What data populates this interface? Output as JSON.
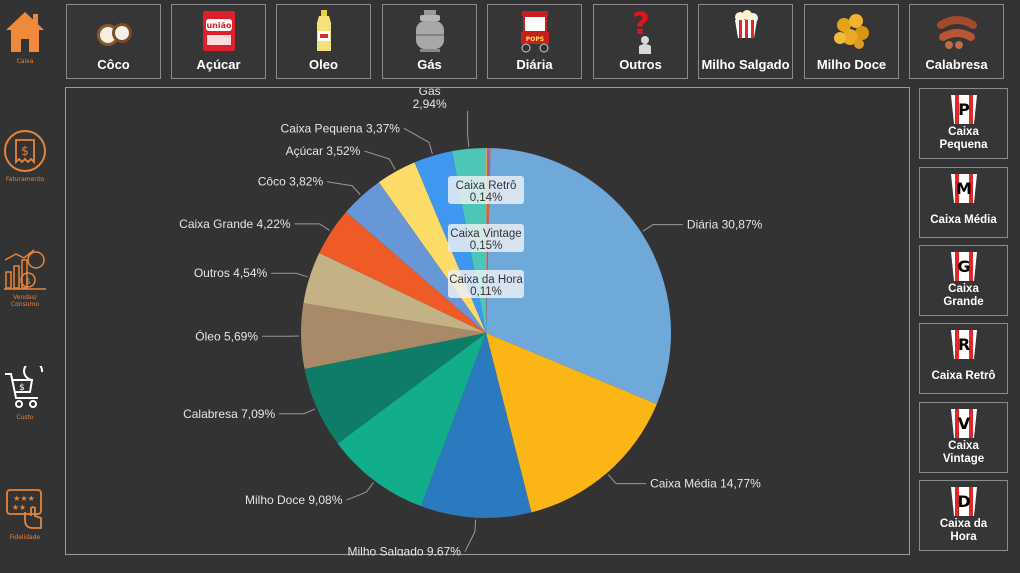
{
  "sidebar": {
    "items": [
      {
        "label": "Caixa",
        "icon": "home-icon"
      },
      {
        "label": "Faturamento",
        "icon": "receipt-dollar-icon"
      },
      {
        "label": "Vendas/ Consumo",
        "icon": "sales-chart-icon"
      },
      {
        "label": "Custo",
        "icon": "shopping-cart-icon"
      },
      {
        "label": "Fidelidade",
        "icon": "loyalty-card-icon"
      }
    ]
  },
  "products": [
    {
      "label": "Côco",
      "icon": "coconut-icon"
    },
    {
      "label": "Açúcar",
      "icon": "sugar-bag-icon"
    },
    {
      "label": "Oleo",
      "icon": "oil-bottle-icon"
    },
    {
      "label": "Gás",
      "icon": "gas-cylinder-icon"
    },
    {
      "label": "Diária",
      "icon": "popcorn-cart-icon"
    },
    {
      "label": "Outros",
      "icon": "question-person-icon"
    },
    {
      "label": "Milho Salgado",
      "icon": "popcorn-bucket-icon"
    },
    {
      "label": "Milho Doce",
      "icon": "caramel-popcorn-icon"
    },
    {
      "label": "Calabresa",
      "icon": "sausage-icon"
    }
  ],
  "boxes": [
    {
      "letter": "P",
      "label": "Caixa Pequena"
    },
    {
      "letter": "M",
      "label": "Caixa Média"
    },
    {
      "letter": "G",
      "label": "Caixa Grande"
    },
    {
      "letter": "R",
      "label": "Caixa Retrô"
    },
    {
      "letter": "V",
      "label": "Caixa Vintage"
    },
    {
      "letter": "D",
      "label": "Caixa da Hora"
    }
  ],
  "chart_data": {
    "type": "pie",
    "unit": "%",
    "slices": [
      {
        "name": "Diária",
        "value": 30.87,
        "label": "Diária 30,87%",
        "color": "#6fa9da"
      },
      {
        "name": "Caixa Média",
        "value": 14.77,
        "label": "Caixa Média 14,77%",
        "color": "#fbb514"
      },
      {
        "name": "Milho Salgado",
        "value": 9.67,
        "label": "Milho Salgado 9,67%",
        "color": "#2b79be"
      },
      {
        "name": "Milho Doce",
        "value": 9.08,
        "label": "Milho Doce 9,08%",
        "color": "#12ae8b"
      },
      {
        "name": "Calabresa",
        "value": 7.09,
        "label": "Calabresa 7,09%",
        "color": "#0f7c68"
      },
      {
        "name": "Óleo",
        "value": 5.69,
        "label": "Óleo 5,69%",
        "color": "#a88a68"
      },
      {
        "name": "Outros",
        "value": 4.54,
        "label": "Outros 4,54%",
        "color": "#c4b184"
      },
      {
        "name": "Caixa Grande",
        "value": 4.22,
        "label": "Caixa Grande 4,22%",
        "color": "#ee5b27"
      },
      {
        "name": "Côco",
        "value": 3.82,
        "label": "Côco 3,82%",
        "color": "#6797d6"
      },
      {
        "name": "Açúcar",
        "value": 3.52,
        "label": "Açúcar 3,52%",
        "color": "#fddb67"
      },
      {
        "name": "Caixa Pequena",
        "value": 3.37,
        "label": "Caixa Pequena 3,37%",
        "color": "#3e97f0"
      },
      {
        "name": "Gás",
        "value": 2.94,
        "label": "Gás 2,94%",
        "color": "#4bc6b7"
      },
      {
        "name": "Caixa Retrô",
        "value": 0.14,
        "label": "Caixa Retrô 0,14%",
        "color": "#d9634a"
      },
      {
        "name": "Caixa Vintage",
        "value": 0.15,
        "label": "Caixa Vintage 0,15%",
        "color": "#8c6dbf"
      },
      {
        "name": "Caixa da Hora",
        "value": 0.11,
        "label": "Caixa da Hora 0,11%",
        "color": "#e0a95a"
      }
    ],
    "boxed_labels": [
      {
        "name": "Caixa Retrô",
        "value_text": "0,14%"
      },
      {
        "name": "Caixa Vintage",
        "value_text": "0,15%"
      },
      {
        "name": "Caixa da Hora",
        "value_text": "0,11%"
      }
    ]
  }
}
